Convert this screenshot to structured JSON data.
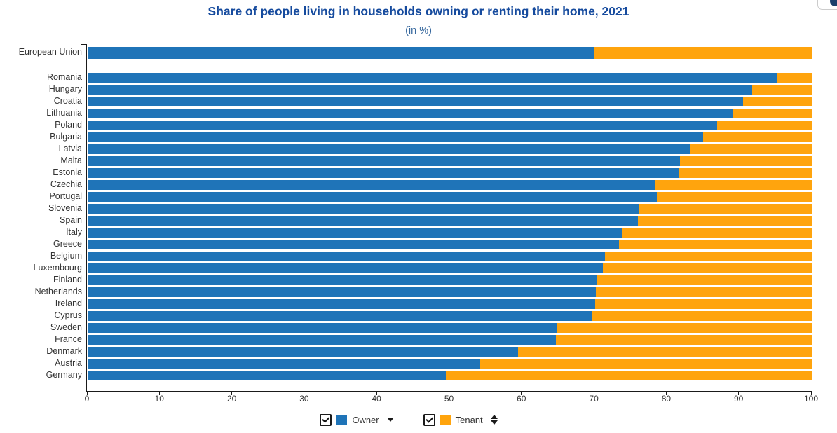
{
  "chart": {
    "title": "Share of people living in households owning or renting their home, 2021",
    "subtitle": "(in %)"
  },
  "colors": {
    "owner": "#1F74B8",
    "tenant": "#FFA40D",
    "title": "#164B9E",
    "subtitle": "#36689E",
    "axis": "#1A1A1A",
    "text": "#333333",
    "panel_border": "#CCCCCC",
    "corner_button": "#1B3E6B"
  },
  "chart_data": {
    "type": "bar",
    "orientation": "horizontal",
    "stacked": true,
    "title": "Share of people living in households owning or renting their home, 2021",
    "subtitle": "(in %)",
    "xlabel": "",
    "ylabel": "",
    "xlim": [
      0,
      100
    ],
    "x_ticks": [
      0,
      10,
      20,
      30,
      40,
      50,
      60,
      70,
      80,
      90,
      100
    ],
    "grid": false,
    "legend_position": "bottom",
    "series": [
      {
        "name": "Owner",
        "color": "#1F74B8"
      },
      {
        "name": "Tenant",
        "color": "#FFA40D"
      }
    ],
    "rows": [
      {
        "label": "European Union",
        "owner": 69.9,
        "tenant": 30.1
      },
      {
        "label": "Romania",
        "owner": 95.3,
        "tenant": 4.7
      },
      {
        "label": "Hungary",
        "owner": 91.8,
        "tenant": 8.2
      },
      {
        "label": "Croatia",
        "owner": 90.5,
        "tenant": 9.5
      },
      {
        "label": "Lithuania",
        "owner": 89.1,
        "tenant": 10.9
      },
      {
        "label": "Poland",
        "owner": 86.9,
        "tenant": 13.1
      },
      {
        "label": "Bulgaria",
        "owner": 85.0,
        "tenant": 15.0
      },
      {
        "label": "Latvia",
        "owner": 83.3,
        "tenant": 16.7
      },
      {
        "label": "Malta",
        "owner": 81.8,
        "tenant": 18.2
      },
      {
        "label": "Estonia",
        "owner": 81.7,
        "tenant": 18.3
      },
      {
        "label": "Czechia",
        "owner": 78.4,
        "tenant": 21.6
      },
      {
        "label": "Portugal",
        "owner": 78.6,
        "tenant": 21.4
      },
      {
        "label": "Slovenia",
        "owner": 76.1,
        "tenant": 23.9
      },
      {
        "label": "Spain",
        "owner": 76.0,
        "tenant": 24.0
      },
      {
        "label": "Italy",
        "owner": 73.8,
        "tenant": 26.2
      },
      {
        "label": "Greece",
        "owner": 73.4,
        "tenant": 26.6
      },
      {
        "label": "Belgium",
        "owner": 71.4,
        "tenant": 28.6
      },
      {
        "label": "Luxembourg",
        "owner": 71.2,
        "tenant": 28.8
      },
      {
        "label": "Finland",
        "owner": 70.4,
        "tenant": 29.6
      },
      {
        "label": "Netherlands",
        "owner": 70.2,
        "tenant": 29.8
      },
      {
        "label": "Ireland",
        "owner": 70.1,
        "tenant": 29.9
      },
      {
        "label": "Cyprus",
        "owner": 69.7,
        "tenant": 30.3
      },
      {
        "label": "Sweden",
        "owner": 64.9,
        "tenant": 35.1
      },
      {
        "label": "France",
        "owner": 64.7,
        "tenant": 35.3
      },
      {
        "label": "Denmark",
        "owner": 59.4,
        "tenant": 40.6
      },
      {
        "label": "Austria",
        "owner": 54.2,
        "tenant": 45.8
      },
      {
        "label": "Germany",
        "owner": 49.5,
        "tenant": 50.5
      }
    ]
  },
  "legend": {
    "items": [
      {
        "label": "Owner",
        "checked": true,
        "sort_icon": "descending"
      },
      {
        "label": "Tenant",
        "checked": true,
        "sort_icon": "both"
      }
    ]
  }
}
